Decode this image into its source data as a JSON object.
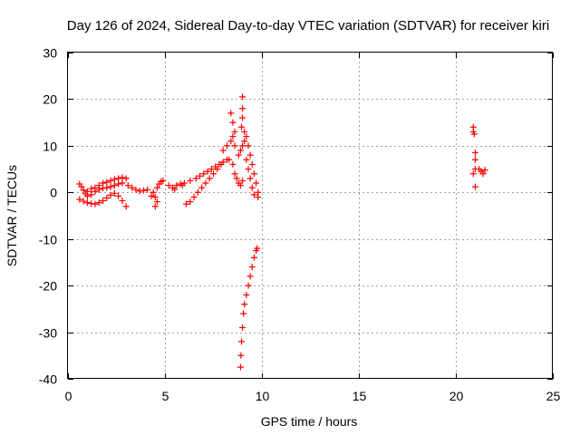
{
  "chart_data": {
    "type": "scatter",
    "title": "Day 126 of 2024, Sidereal Day-to-day VTEC variation (SDTVAR) for receiver kiri",
    "xlabel": "GPS time / hours",
    "ylabel": "SDTVAR / TECUs",
    "xlim": [
      0,
      25
    ],
    "ylim": [
      -40,
      30
    ],
    "xticks": [
      0,
      5,
      10,
      15,
      20,
      25
    ],
    "yticks": [
      -40,
      -30,
      -20,
      -10,
      0,
      10,
      20,
      30
    ],
    "grid": true,
    "marker": "+",
    "color": "#ff0000",
    "series": [
      {
        "points": [
          [
            0.6,
            1.8
          ],
          [
            0.7,
            1.2
          ],
          [
            0.8,
            0.5
          ],
          [
            0.9,
            -0.3
          ],
          [
            1.0,
            -0.8
          ],
          [
            0.6,
            -1.5
          ],
          [
            0.8,
            -1.9
          ],
          [
            1.0,
            -2.2
          ],
          [
            1.2,
            -2.4
          ],
          [
            1.4,
            -2.5
          ],
          [
            1.6,
            -2.2
          ],
          [
            1.8,
            -1.8
          ],
          [
            2.0,
            -1.2
          ],
          [
            2.2,
            -0.6
          ],
          [
            2.4,
            -0.2
          ],
          [
            2.6,
            -0.8
          ],
          [
            2.8,
            -1.8
          ],
          [
            3.0,
            -3.0
          ],
          [
            1.0,
            0.2
          ],
          [
            1.2,
            0.8
          ],
          [
            1.4,
            1.0
          ],
          [
            1.6,
            1.5
          ],
          [
            1.8,
            2.0
          ],
          [
            2.0,
            2.2
          ],
          [
            2.2,
            2.5
          ],
          [
            2.4,
            2.8
          ],
          [
            2.6,
            3.0
          ],
          [
            2.8,
            3.2
          ],
          [
            3.0,
            3.0
          ],
          [
            1.2,
            -0.5
          ],
          [
            1.4,
            0.2
          ],
          [
            1.6,
            0.6
          ],
          [
            1.8,
            0.9
          ],
          [
            2.0,
            1.0
          ],
          [
            2.2,
            1.2
          ],
          [
            2.4,
            1.5
          ],
          [
            2.6,
            1.8
          ],
          [
            2.8,
            2.0
          ],
          [
            3.1,
            1.5
          ],
          [
            3.3,
            1.0
          ],
          [
            3.5,
            0.6
          ],
          [
            3.7,
            0.3
          ],
          [
            3.9,
            0.4
          ],
          [
            4.1,
            0.6
          ],
          [
            4.4,
            0.0
          ],
          [
            4.5,
            -1.0
          ],
          [
            4.6,
            -2.0
          ],
          [
            4.5,
            -3.0
          ],
          [
            4.3,
            -0.8
          ],
          [
            4.6,
            1.0
          ],
          [
            4.7,
            1.8
          ],
          [
            4.8,
            2.3
          ],
          [
            4.9,
            2.5
          ],
          [
            5.2,
            1.5
          ],
          [
            5.4,
            1.0
          ],
          [
            5.5,
            0.6
          ],
          [
            5.6,
            1.5
          ],
          [
            5.8,
            1.8
          ],
          [
            5.9,
            1.5
          ],
          [
            6.0,
            2.0
          ],
          [
            6.3,
            2.5
          ],
          [
            6.6,
            3.0
          ],
          [
            6.8,
            3.5
          ],
          [
            7.0,
            4.0
          ],
          [
            7.2,
            4.5
          ],
          [
            7.4,
            5.0
          ],
          [
            7.6,
            5.5
          ],
          [
            7.8,
            6.0
          ],
          [
            8.0,
            6.5
          ],
          [
            8.2,
            7.0
          ],
          [
            6.1,
            -2.5
          ],
          [
            6.3,
            -2.0
          ],
          [
            6.5,
            -1.0
          ],
          [
            6.7,
            0.0
          ],
          [
            6.9,
            1.0
          ],
          [
            7.1,
            2.0
          ],
          [
            7.3,
            3.0
          ],
          [
            7.5,
            4.0
          ],
          [
            7.7,
            5.0
          ],
          [
            7.9,
            6.0
          ],
          [
            8.0,
            9.0
          ],
          [
            8.2,
            10.0
          ],
          [
            8.4,
            11.0
          ],
          [
            8.5,
            12.0
          ],
          [
            8.6,
            10.0
          ],
          [
            8.5,
            15.0
          ],
          [
            8.4,
            17.0
          ],
          [
            8.6,
            13.0
          ],
          [
            8.3,
            7.0
          ],
          [
            8.5,
            6.0
          ],
          [
            8.6,
            4.0
          ],
          [
            8.7,
            3.0
          ],
          [
            8.8,
            2.0
          ],
          [
            8.9,
            1.5
          ],
          [
            9.0,
            2.5
          ],
          [
            8.8,
            8.0
          ],
          [
            8.9,
            9.0
          ],
          [
            9.0,
            10.0
          ],
          [
            9.1,
            11.0
          ],
          [
            9.2,
            12.0
          ],
          [
            9.3,
            10.0
          ],
          [
            9.4,
            8.0
          ],
          [
            9.5,
            6.0
          ],
          [
            9.6,
            4.0
          ],
          [
            9.7,
            2.0
          ],
          [
            9.8,
            0.0
          ],
          [
            9.8,
            -1.0
          ],
          [
            9.2,
            7.0
          ],
          [
            9.3,
            5.0
          ],
          [
            9.4,
            3.0
          ],
          [
            9.5,
            1.0
          ],
          [
            9.6,
            -0.5
          ],
          [
            9.0,
            20.5
          ],
          [
            9.0,
            18.0
          ],
          [
            9.0,
            16.0
          ],
          [
            8.95,
            14.0
          ],
          [
            9.1,
            13.0
          ],
          [
            8.9,
            -37.5
          ],
          [
            8.92,
            -35.0
          ],
          [
            8.95,
            -32.0
          ],
          [
            9.0,
            -29.0
          ],
          [
            9.05,
            -26.0
          ],
          [
            9.1,
            -24.0
          ],
          [
            9.2,
            -22.0
          ],
          [
            9.3,
            -20.0
          ],
          [
            9.4,
            -18.0
          ],
          [
            9.5,
            -16.0
          ],
          [
            9.6,
            -14.0
          ],
          [
            9.7,
            -12.5
          ],
          [
            9.75,
            -12.0
          ],
          [
            20.9,
            14.0
          ],
          [
            20.9,
            13.0
          ],
          [
            20.95,
            12.5
          ],
          [
            21.0,
            8.5
          ],
          [
            21.0,
            7.0
          ],
          [
            21.0,
            5.0
          ],
          [
            20.9,
            4.0
          ],
          [
            21.0,
            1.2
          ],
          [
            21.2,
            5.0
          ],
          [
            21.3,
            4.5
          ],
          [
            21.4,
            4.0
          ],
          [
            21.5,
            4.8
          ]
        ]
      }
    ]
  }
}
